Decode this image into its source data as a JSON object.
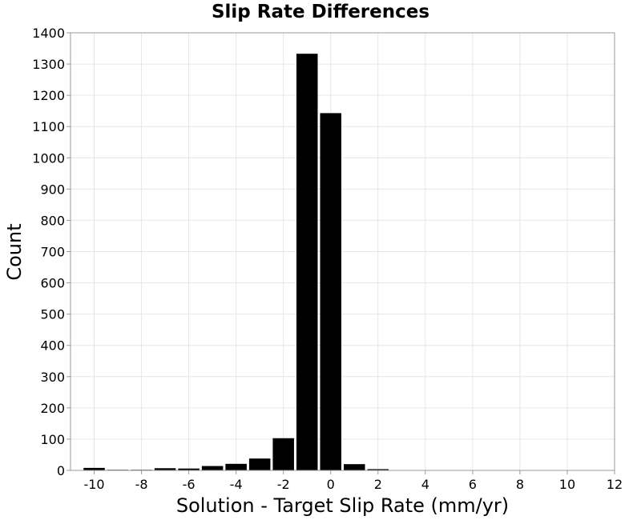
{
  "chart_data": {
    "type": "bar",
    "title": "Slip Rate Differences",
    "xlabel": "Solution - Target Slip Rate (mm/yr)",
    "ylabel": "Count",
    "xlim": [
      -11,
      12
    ],
    "ylim": [
      0,
      1400
    ],
    "xticks": [
      -10,
      -8,
      -6,
      -4,
      -2,
      0,
      2,
      4,
      6,
      8,
      10,
      12
    ],
    "yticks": [
      0,
      100,
      200,
      300,
      400,
      500,
      600,
      700,
      800,
      900,
      1000,
      1100,
      1200,
      1300,
      1400
    ],
    "grid": true,
    "bin_width": 1,
    "bins": [
      {
        "center": -10,
        "value": 8
      },
      {
        "center": -9,
        "value": 2
      },
      {
        "center": -8,
        "value": 2
      },
      {
        "center": -7,
        "value": 7
      },
      {
        "center": -6,
        "value": 6
      },
      {
        "center": -5,
        "value": 14
      },
      {
        "center": -4,
        "value": 21
      },
      {
        "center": -3,
        "value": 38
      },
      {
        "center": -2,
        "value": 103
      },
      {
        "center": -1,
        "value": 1333
      },
      {
        "center": 0,
        "value": 1143
      },
      {
        "center": 1,
        "value": 20
      },
      {
        "center": 2,
        "value": 4
      },
      {
        "center": 3,
        "value": 1
      },
      {
        "center": 4,
        "value": 0
      },
      {
        "center": 5,
        "value": 1
      },
      {
        "center": 6,
        "value": 0
      },
      {
        "center": 7,
        "value": 0
      },
      {
        "center": 8,
        "value": 0
      },
      {
        "center": 9,
        "value": 0
      },
      {
        "center": 10,
        "value": 0
      },
      {
        "center": 11,
        "value": 0
      }
    ],
    "bar_color": "#000000",
    "grid_color": "#e6e6e6"
  }
}
